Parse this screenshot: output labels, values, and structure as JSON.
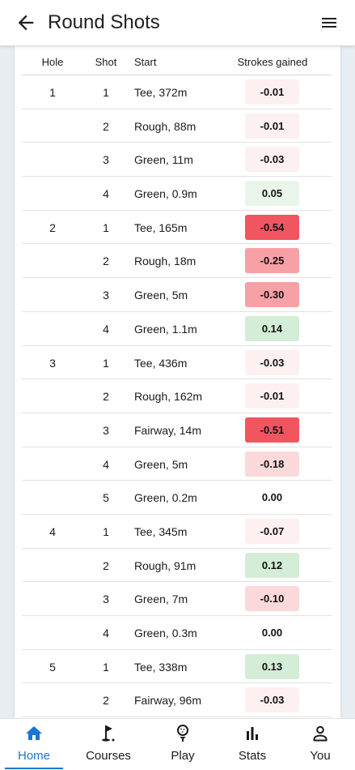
{
  "header": {
    "title": "Round Shots"
  },
  "colors": {
    "accent": "#1976d2",
    "strong_negative": "#f05560",
    "medium_negative": "#f7a1a6",
    "light_negative": "#fbd9db",
    "faint_negative": "#fdf0f1",
    "positive": "#d4edd6",
    "faint_positive": "#e9f5ea"
  },
  "table": {
    "headers": {
      "hole": "Hole",
      "shot": "Shot",
      "start": "Start",
      "strokes_gained": "Strokes gained"
    },
    "rows": [
      {
        "hole": "1",
        "shot": "1",
        "start": "Tee, 372m",
        "sg": "-0.01"
      },
      {
        "hole": "",
        "shot": "2",
        "start": "Rough, 88m",
        "sg": "-0.01"
      },
      {
        "hole": "",
        "shot": "3",
        "start": "Green, 11m",
        "sg": "-0.03"
      },
      {
        "hole": "",
        "shot": "4",
        "start": "Green, 0.9m",
        "sg": "0.05"
      },
      {
        "hole": "2",
        "shot": "1",
        "start": "Tee, 165m",
        "sg": "-0.54"
      },
      {
        "hole": "",
        "shot": "2",
        "start": "Rough, 18m",
        "sg": "-0.25"
      },
      {
        "hole": "",
        "shot": "3",
        "start": "Green, 5m",
        "sg": "-0.30"
      },
      {
        "hole": "",
        "shot": "4",
        "start": "Green, 1.1m",
        "sg": "0.14"
      },
      {
        "hole": "3",
        "shot": "1",
        "start": "Tee, 436m",
        "sg": "-0.03"
      },
      {
        "hole": "",
        "shot": "2",
        "start": "Rough, 162m",
        "sg": "-0.01"
      },
      {
        "hole": "",
        "shot": "3",
        "start": "Fairway, 14m",
        "sg": "-0.51"
      },
      {
        "hole": "",
        "shot": "4",
        "start": "Green, 5m",
        "sg": "-0.18"
      },
      {
        "hole": "",
        "shot": "5",
        "start": "Green, 0.2m",
        "sg": "0.00"
      },
      {
        "hole": "4",
        "shot": "1",
        "start": "Tee, 345m",
        "sg": "-0.07"
      },
      {
        "hole": "",
        "shot": "2",
        "start": "Rough, 91m",
        "sg": "0.12"
      },
      {
        "hole": "",
        "shot": "3",
        "start": "Green, 7m",
        "sg": "-0.10"
      },
      {
        "hole": "",
        "shot": "4",
        "start": "Green, 0.3m",
        "sg": "0.00"
      },
      {
        "hole": "5",
        "shot": "1",
        "start": "Tee, 338m",
        "sg": "0.13"
      },
      {
        "hole": "",
        "shot": "2",
        "start": "Fairway, 96m",
        "sg": "-0.03"
      }
    ]
  },
  "bottom_nav": {
    "items": [
      {
        "label": "Home",
        "icon": "home-icon",
        "active": true
      },
      {
        "label": "Courses",
        "icon": "golf-flag-icon",
        "active": false
      },
      {
        "label": "Play",
        "icon": "golf-ball-tee-icon",
        "active": false
      },
      {
        "label": "Stats",
        "icon": "bar-chart-icon",
        "active": false
      },
      {
        "label": "You",
        "icon": "person-icon",
        "active": false
      }
    ]
  }
}
